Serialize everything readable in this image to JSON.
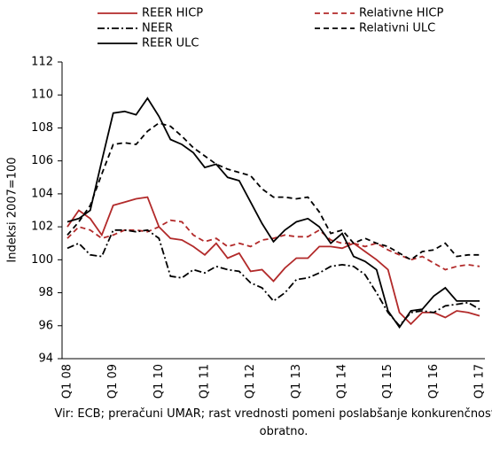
{
  "chart_data": {
    "type": "line",
    "y_label": "Indeksi 2007=100",
    "source": "Vir: ECB; preračuni UMAR; rast vrednosti pomeni poslabšanje konkurenčnosti in obratno.",
    "categories": [
      "Q1 08",
      null,
      null,
      null,
      "Q1 09",
      null,
      null,
      null,
      "Q1 10",
      null,
      null,
      null,
      "Q1 11",
      null,
      null,
      null,
      "Q1 12",
      null,
      null,
      null,
      "Q1 13",
      null,
      null,
      null,
      "Q1 14",
      null,
      null,
      null,
      "Q1 15",
      null,
      null,
      null,
      "Q1 16",
      null,
      null,
      null,
      "Q1 17"
    ],
    "ylim": [
      94,
      112
    ],
    "yticks": [
      94,
      96,
      98,
      100,
      102,
      104,
      106,
      108,
      110,
      112
    ],
    "grid": false,
    "series": [
      {
        "name": "REER HICP",
        "color": "#b22a2a",
        "dash": "solid",
        "values": [
          102.0,
          103.0,
          102.5,
          101.5,
          103.3,
          103.5,
          103.7,
          103.8,
          102.0,
          101.3,
          101.2,
          100.8,
          100.3,
          101.0,
          100.1,
          100.4,
          99.3,
          99.4,
          98.7,
          99.5,
          100.1,
          100.1,
          100.8,
          100.8,
          100.7,
          101.0,
          100.5,
          100.0,
          99.4,
          96.8,
          96.1,
          96.8,
          96.8,
          96.5,
          96.9,
          96.8,
          96.6
        ]
      },
      {
        "name": "Relativne HICP",
        "color": "#b22a2a",
        "dash": "dashed",
        "values": [
          101.3,
          102.0,
          101.8,
          101.3,
          101.5,
          101.8,
          101.8,
          101.7,
          102.0,
          102.4,
          102.3,
          101.5,
          101.1,
          101.3,
          100.8,
          101.0,
          100.8,
          101.2,
          101.3,
          101.5,
          101.4,
          101.4,
          101.8,
          101.2,
          101.0,
          101.0,
          100.8,
          101.0,
          100.6,
          100.3,
          100.0,
          100.2,
          99.8,
          99.4,
          99.6,
          99.7,
          99.6
        ]
      },
      {
        "name": "NEER",
        "color": "#000000",
        "dash": "dashdot",
        "values": [
          100.7,
          101.0,
          100.3,
          100.2,
          101.8,
          101.8,
          101.7,
          101.8,
          101.3,
          99.0,
          98.9,
          99.4,
          99.2,
          99.6,
          99.4,
          99.3,
          98.6,
          98.3,
          97.5,
          98.0,
          98.8,
          98.9,
          99.2,
          99.6,
          99.7,
          99.6,
          99.1,
          98.0,
          96.8,
          96.0,
          96.8,
          96.9,
          96.8,
          97.2,
          97.3,
          97.4,
          97.0
        ]
      },
      {
        "name": "Relativni ULC",
        "color": "#000000",
        "dash": "dashed",
        "values": [
          101.5,
          102.3,
          103.3,
          105.2,
          107.0,
          107.1,
          107.0,
          107.8,
          108.3,
          108.1,
          107.5,
          106.8,
          106.3,
          105.8,
          105.5,
          105.3,
          105.1,
          104.3,
          103.8,
          103.8,
          103.7,
          103.8,
          102.9,
          101.6,
          101.8,
          101.0,
          101.3,
          101.0,
          100.8,
          100.4,
          100.0,
          100.5,
          100.6,
          101.0,
          100.2,
          100.3,
          100.3
        ]
      },
      {
        "name": "REER ULC",
        "color": "#000000",
        "dash": "solid",
        "values": [
          102.3,
          102.5,
          103.0,
          106.0,
          108.9,
          109.0,
          108.8,
          109.8,
          108.7,
          107.3,
          107.0,
          106.5,
          105.6,
          105.8,
          105.0,
          104.8,
          103.5,
          102.2,
          101.1,
          101.8,
          102.3,
          102.5,
          102.0,
          101.0,
          101.6,
          100.2,
          99.9,
          99.4,
          96.9,
          95.9,
          96.9,
          97.0,
          97.8,
          98.3,
          97.5,
          97.5,
          97.5
        ]
      }
    ]
  }
}
